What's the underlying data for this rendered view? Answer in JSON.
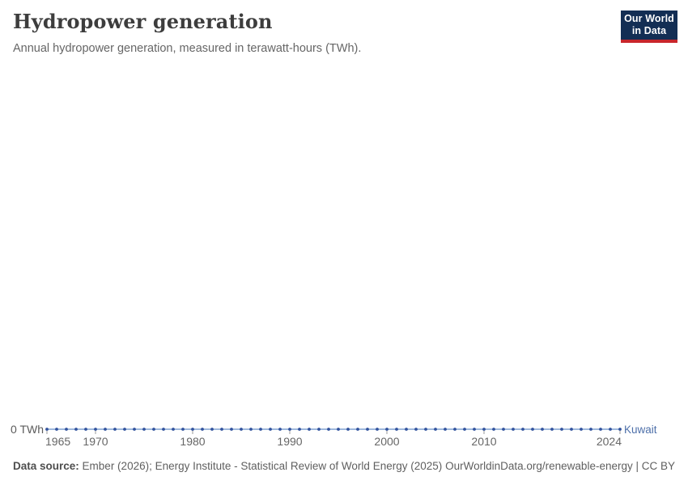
{
  "header": {
    "title": "Hydropower generation",
    "subtitle": "Annual hydropower generation, measured in terawatt-hours (TWh).",
    "logo": {
      "line1": "Our World",
      "line2": "in Data",
      "bg_color": "#132e54",
      "accent_color": "#c8262b"
    }
  },
  "chart_data": {
    "type": "line",
    "title": "Hydropower generation",
    "entity": "Kuwait",
    "unit": "TWh",
    "x": [
      1965,
      1966,
      1967,
      1968,
      1969,
      1970,
      1971,
      1972,
      1973,
      1974,
      1975,
      1976,
      1977,
      1978,
      1979,
      1980,
      1981,
      1982,
      1983,
      1984,
      1985,
      1986,
      1987,
      1988,
      1989,
      1990,
      1991,
      1992,
      1993,
      1994,
      1995,
      1996,
      1997,
      1998,
      1999,
      2000,
      2001,
      2002,
      2003,
      2004,
      2005,
      2006,
      2007,
      2008,
      2009,
      2010,
      2011,
      2012,
      2013,
      2014,
      2015,
      2016,
      2017,
      2018,
      2019,
      2020,
      2021,
      2022,
      2023,
      2024
    ],
    "values": [
      0,
      0,
      0,
      0,
      0,
      0,
      0,
      0,
      0,
      0,
      0,
      0,
      0,
      0,
      0,
      0,
      0,
      0,
      0,
      0,
      0,
      0,
      0,
      0,
      0,
      0,
      0,
      0,
      0,
      0,
      0,
      0,
      0,
      0,
      0,
      0,
      0,
      0,
      0,
      0,
      0,
      0,
      0,
      0,
      0,
      0,
      0,
      0,
      0,
      0,
      0,
      0,
      0,
      0,
      0,
      0,
      0,
      0,
      0,
      0
    ],
    "xlim": [
      1965,
      2024
    ],
    "ylim": [
      0,
      0
    ],
    "x_ticks": [
      1965,
      1970,
      1980,
      1990,
      2000,
      2010,
      2024
    ],
    "y_tick_labels": [
      "0 TWh"
    ],
    "grid": false,
    "legend_position": "end-of-line",
    "colors": {
      "line": "#9fb8dc",
      "marker": "#33539d",
      "entity_label": "#4d6fa9",
      "tick": "#9a9a9a",
      "axis_text": "#666666",
      "y_axis_text": "#5b5b5b"
    }
  },
  "footer": {
    "source_label": "Data source:",
    "source_text": "Ember (2026); Energy Institute - Statistical Review of World Energy (2025)",
    "link_text": "OurWorldinData.org/renewable-energy | CC BY"
  }
}
